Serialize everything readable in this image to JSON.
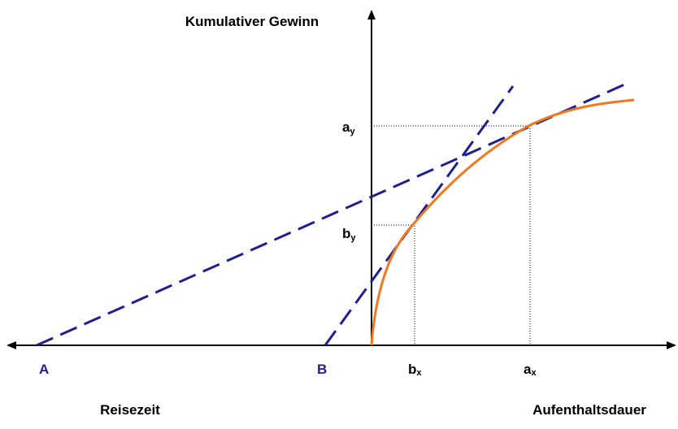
{
  "axis_labels": {
    "y": "Kumulativer Gewinn",
    "x_left": "Reisezeit",
    "x_right": "Aufenthaltsdauer"
  },
  "points": {
    "ay": {
      "letter": "a",
      "sub": "y"
    },
    "by": {
      "letter": "b",
      "sub": "y"
    },
    "bx": {
      "letter": "b",
      "sub": "x"
    },
    "ax": {
      "letter": "a",
      "sub": "x"
    }
  },
  "intercepts": [
    "A",
    "B"
  ]
}
